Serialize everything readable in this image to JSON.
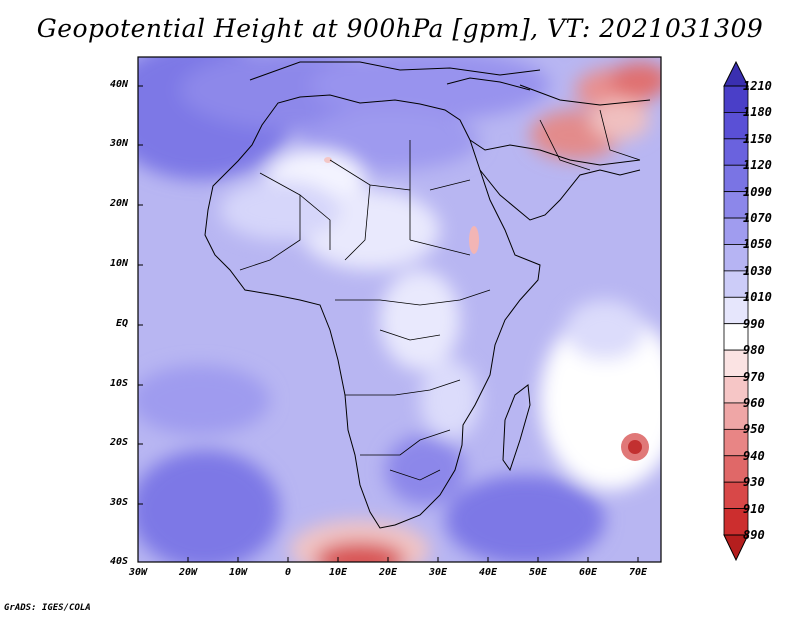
{
  "title": "Geopotential Height at 900hPa [gpm], VT: 2021031309",
  "credit": "GrADS: IGES/COLA",
  "lat_labels": [
    "40N",
    "30N",
    "20N",
    "10N",
    "EQ",
    "10S",
    "20S",
    "30S",
    "40S"
  ],
  "lon_labels": [
    "30W",
    "20W",
    "10W",
    "0",
    "10E",
    "20E",
    "30E",
    "40E",
    "50E",
    "60E",
    "70E"
  ],
  "colorbar": {
    "labels": [
      "1210",
      "1180",
      "1150",
      "1120",
      "1090",
      "1070",
      "1050",
      "1030",
      "1010",
      "990",
      "980",
      "970",
      "960",
      "950",
      "940",
      "930",
      "910",
      "890"
    ],
    "colors": [
      "#3a2fb0",
      "#4a3fc8",
      "#5a50d6",
      "#6a62de",
      "#7a74e4",
      "#8c87ea",
      "#a09cef",
      "#b6b4f3",
      "#ccccf8",
      "#e6e6fc",
      "#ffffff",
      "#fbe3e3",
      "#f6c6c6",
      "#efa6a6",
      "#e88585",
      "#e06868",
      "#d84848",
      "#cc2e2e",
      "#b51e1e"
    ]
  }
}
